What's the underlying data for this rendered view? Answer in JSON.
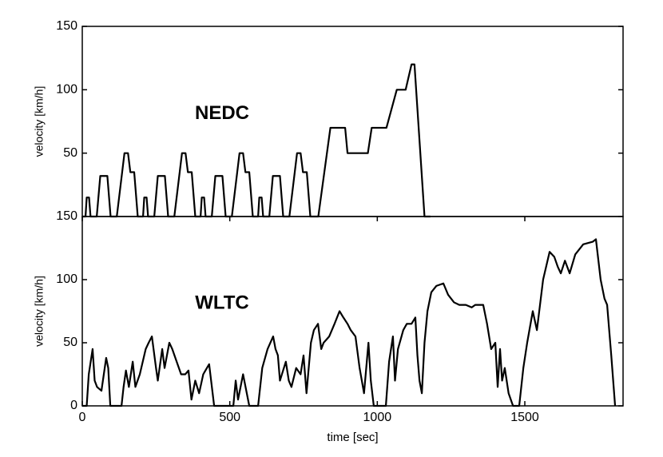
{
  "chart_data": [
    {
      "type": "line",
      "annotation": "NEDC",
      "ylabel": "velocity [km/h]",
      "xlim": [
        0,
        1833
      ],
      "ylim": [
        0,
        150
      ],
      "yticks": [
        50,
        100,
        150
      ],
      "series": [
        {
          "color": "#000000",
          "x": [
            0,
            11,
            15,
            23,
            28,
            49,
            61,
            85,
            96,
            117,
            143,
            155,
            163,
            176,
            188,
            195,
            206,
            210,
            218,
            223,
            244,
            256,
            280,
            291,
            312,
            338,
            350,
            358,
            371,
            383,
            390,
            401,
            405,
            413,
            418,
            439,
            451,
            475,
            486,
            507,
            533,
            545,
            553,
            566,
            578,
            585,
            596,
            600,
            608,
            613,
            634,
            646,
            670,
            681,
            702,
            728,
            740,
            748,
            761,
            773,
            780,
            800,
            841,
            891,
            899,
            968,
            981,
            1031,
            1066,
            1096,
            1116,
            1126,
            1160,
            1180
          ],
          "values": [
            0,
            0,
            15,
            15,
            0,
            0,
            32,
            32,
            0,
            0,
            50,
            50,
            35,
            35,
            0,
            0,
            0,
            15,
            15,
            0,
            0,
            32,
            32,
            0,
            0,
            50,
            50,
            35,
            35,
            0,
            0,
            0,
            15,
            15,
            0,
            0,
            32,
            32,
            0,
            0,
            50,
            50,
            35,
            35,
            0,
            0,
            0,
            15,
            15,
            0,
            0,
            32,
            32,
            0,
            0,
            50,
            50,
            35,
            35,
            0,
            0,
            0,
            70,
            70,
            50,
            50,
            70,
            70,
            100,
            100,
            120,
            120,
            0,
            0
          ]
        }
      ]
    },
    {
      "type": "line",
      "annotation": "WLTC",
      "ylabel": "velocity [km/h]",
      "xlabel": "time [sec]",
      "xlim": [
        0,
        1833
      ],
      "xticks": [
        0,
        500,
        1000,
        1500
      ],
      "ylim": [
        0,
        150
      ],
      "yticks": [
        0,
        50,
        100,
        150
      ],
      "series": [
        {
          "color": "#000000",
          "x": [
            0,
            15,
            22,
            35,
            42,
            50,
            65,
            81,
            88,
            95,
            133,
            140,
            148,
            158,
            171,
            180,
            195,
            215,
            225,
            236,
            250,
            256,
            271,
            279,
            295,
            305,
            320,
            335,
            349,
            360,
            370,
            383,
            396,
            410,
            430,
            447,
            512,
            520,
            528,
            545,
            566,
            596,
            610,
            628,
            647,
            655,
            663,
            670,
            690,
            700,
            709,
            725,
            740,
            750,
            760,
            775,
            785,
            799,
            810,
            818,
            837,
            855,
            872,
            885,
            899,
            910,
            926,
            940,
            955,
            970,
            978,
            988,
            1029,
            1040,
            1053,
            1060,
            1070,
            1088,
            1100,
            1116,
            1129,
            1136,
            1143,
            1151,
            1160,
            1170,
            1183,
            1200,
            1224,
            1240,
            1260,
            1278,
            1300,
            1320,
            1332,
            1359,
            1372,
            1386,
            1400,
            1408,
            1416,
            1423,
            1432,
            1445,
            1460,
            1481,
            1495,
            1508,
            1527,
            1541,
            1562,
            1584,
            1600,
            1612,
            1622,
            1636,
            1652,
            1671,
            1698,
            1730,
            1741,
            1757,
            1770,
            1779,
            1793,
            1806
          ],
          "values": [
            0,
            0,
            25,
            45,
            20,
            15,
            12,
            38,
            30,
            0,
            0,
            15,
            28,
            15,
            35,
            15,
            25,
            45,
            50,
            55,
            30,
            20,
            45,
            30,
            50,
            45,
            35,
            25,
            25,
            28,
            5,
            20,
            10,
            25,
            33,
            0,
            0,
            20,
            5,
            25,
            0,
            0,
            30,
            45,
            55,
            45,
            40,
            20,
            35,
            20,
            15,
            30,
            25,
            40,
            10,
            50,
            60,
            65,
            45,
            50,
            55,
            65,
            75,
            70,
            65,
            60,
            55,
            30,
            10,
            50,
            20,
            0,
            0,
            35,
            55,
            20,
            45,
            60,
            65,
            65,
            70,
            40,
            20,
            10,
            50,
            75,
            90,
            95,
            97,
            88,
            82,
            80,
            80,
            78,
            80,
            80,
            65,
            45,
            50,
            15,
            45,
            20,
            30,
            10,
            0,
            0,
            30,
            50,
            75,
            60,
            100,
            122,
            118,
            110,
            105,
            115,
            105,
            120,
            128,
            130,
            132,
            100,
            85,
            80,
            40,
            0
          ]
        }
      ]
    }
  ]
}
